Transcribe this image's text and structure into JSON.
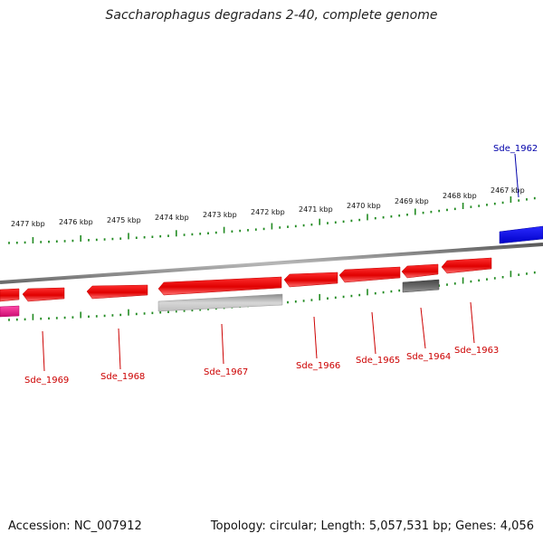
{
  "title": "Saccharophagus degradans 2-40, complete genome",
  "footer": {
    "accession": "Accession: NC_007912",
    "summary": "Topology: circular; Length: 5,057,531 bp; Genes: 4,056"
  },
  "colors": {
    "forward_gene": "#ee0000",
    "reverse_gene": "#ee0000",
    "blue_gene": "#0000ee",
    "pink_gene": "#ee1f8e",
    "grey_feature": "#bbbbbb",
    "dark_feature": "#555555",
    "backbone": "#888888",
    "tick": "#228b22",
    "label_red": "#cc0000",
    "label_blue": "#0000aa"
  },
  "scale_labels": [
    "2477 kbp",
    "2476 kbp",
    "2475 kbp",
    "2474 kbp",
    "2473 kbp",
    "2472 kbp",
    "2471 kbp",
    "2470 kbp",
    "2469 kbp",
    "2468 kbp",
    "2467 kbp"
  ],
  "gene_labels": [
    {
      "name": "Sde_1962",
      "color": "blue"
    },
    {
      "name": "Sde_1963",
      "color": "red"
    },
    {
      "name": "Sde_1964",
      "color": "red"
    },
    {
      "name": "Sde_1965",
      "color": "red"
    },
    {
      "name": "Sde_1966",
      "color": "red"
    },
    {
      "name": "Sde_1967",
      "color": "red"
    },
    {
      "name": "Sde_1968",
      "color": "red"
    },
    {
      "name": "Sde_1969",
      "color": "red"
    }
  ]
}
